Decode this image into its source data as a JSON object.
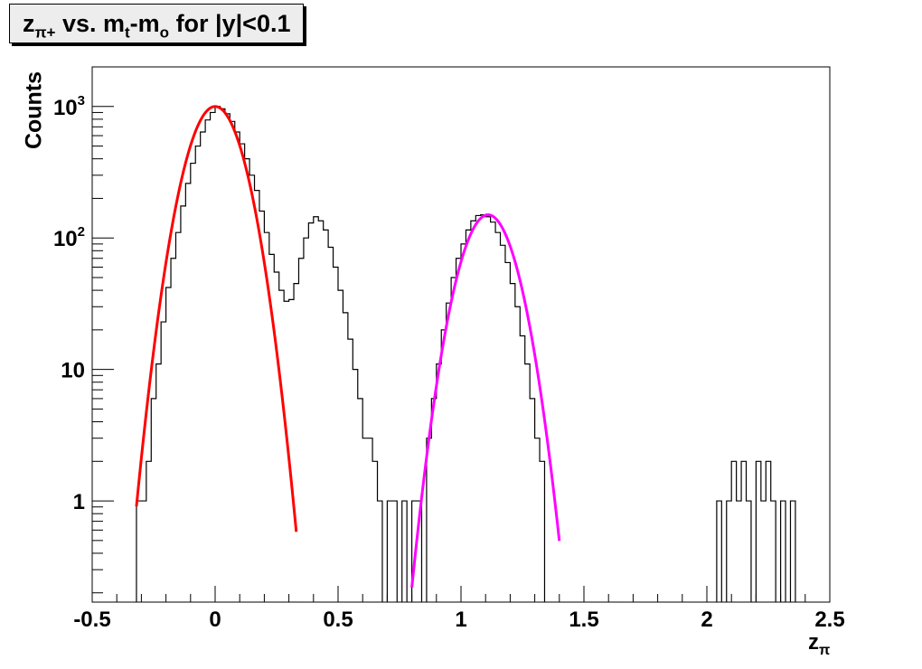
{
  "chart_data": {
    "type": "histogram",
    "title_parts": {
      "z": "z",
      "z_sub": "π+",
      "mid": " vs. m",
      "mt_sub": "t",
      "dash": "-m",
      "mo_sub": "o",
      "tail": " for |y|<0.1"
    },
    "ylabel": "Counts",
    "xlabel": {
      "main": "z",
      "sub": "π"
    },
    "y_scale": "log",
    "xlim": [
      -0.5,
      2.5
    ],
    "ylim": [
      0.17,
      2000
    ],
    "x_ticks": [
      {
        "v": -0.5,
        "label": "-0.5"
      },
      {
        "v": 0,
        "label": "0"
      },
      {
        "v": 0.5,
        "label": "0.5"
      },
      {
        "v": 1,
        "label": "1"
      },
      {
        "v": 1.5,
        "label": "1.5"
      },
      {
        "v": 2,
        "label": "2"
      },
      {
        "v": 2.5,
        "label": "2.5"
      }
    ],
    "y_ticks": [
      {
        "v": 1000,
        "base": "10",
        "sup": "3"
      },
      {
        "v": 100,
        "base": "10",
        "sup": "2"
      },
      {
        "v": 10,
        "base": "10",
        "sup": ""
      },
      {
        "v": 1,
        "base": "1",
        "sup": ""
      }
    ],
    "histogram": {
      "bin_width": 0.02,
      "color": "#000000",
      "bins": [
        [
          -0.32,
          1
        ],
        [
          -0.3,
          1
        ],
        [
          -0.28,
          2
        ],
        [
          -0.26,
          6
        ],
        [
          -0.24,
          11
        ],
        [
          -0.22,
          23
        ],
        [
          -0.2,
          42
        ],
        [
          -0.18,
          70
        ],
        [
          -0.16,
          110
        ],
        [
          -0.14,
          175
        ],
        [
          -0.12,
          260
        ],
        [
          -0.1,
          370
        ],
        [
          -0.08,
          500
        ],
        [
          -0.06,
          640
        ],
        [
          -0.04,
          790
        ],
        [
          -0.02,
          900
        ],
        [
          0.0,
          1000
        ],
        [
          0.02,
          960
        ],
        [
          0.04,
          880
        ],
        [
          0.06,
          770
        ],
        [
          0.08,
          640
        ],
        [
          0.1,
          520
        ],
        [
          0.12,
          400
        ],
        [
          0.14,
          300
        ],
        [
          0.16,
          230
        ],
        [
          0.18,
          160
        ],
        [
          0.2,
          110
        ],
        [
          0.22,
          75
        ],
        [
          0.24,
          55
        ],
        [
          0.26,
          40
        ],
        [
          0.28,
          33
        ],
        [
          0.3,
          34
        ],
        [
          0.32,
          45
        ],
        [
          0.34,
          70
        ],
        [
          0.36,
          100
        ],
        [
          0.38,
          130
        ],
        [
          0.4,
          145
        ],
        [
          0.42,
          135
        ],
        [
          0.44,
          115
        ],
        [
          0.46,
          85
        ],
        [
          0.48,
          60
        ],
        [
          0.5,
          40
        ],
        [
          0.52,
          27
        ],
        [
          0.54,
          17
        ],
        [
          0.56,
          10
        ],
        [
          0.58,
          6
        ],
        [
          0.6,
          3
        ],
        [
          0.62,
          3
        ],
        [
          0.64,
          2
        ],
        [
          0.66,
          1
        ],
        [
          0.7,
          1
        ],
        [
          0.72,
          1
        ],
        [
          0.76,
          1
        ],
        [
          0.8,
          1
        ],
        [
          0.82,
          1
        ],
        [
          0.86,
          3
        ],
        [
          0.88,
          6
        ],
        [
          0.9,
          11
        ],
        [
          0.92,
          20
        ],
        [
          0.94,
          32
        ],
        [
          0.96,
          50
        ],
        [
          0.98,
          70
        ],
        [
          1.0,
          90
        ],
        [
          1.02,
          115
        ],
        [
          1.04,
          135
        ],
        [
          1.06,
          148
        ],
        [
          1.08,
          150
        ],
        [
          1.1,
          145
        ],
        [
          1.12,
          132
        ],
        [
          1.14,
          110
        ],
        [
          1.16,
          88
        ],
        [
          1.18,
          65
        ],
        [
          1.2,
          45
        ],
        [
          1.22,
          30
        ],
        [
          1.24,
          18
        ],
        [
          1.26,
          11
        ],
        [
          1.28,
          6
        ],
        [
          1.3,
          3
        ],
        [
          1.32,
          2
        ],
        [
          2.04,
          1
        ],
        [
          2.08,
          1
        ],
        [
          2.1,
          2
        ],
        [
          2.12,
          1
        ],
        [
          2.14,
          2
        ],
        [
          2.16,
          1
        ],
        [
          2.2,
          2
        ],
        [
          2.22,
          1
        ],
        [
          2.24,
          2
        ],
        [
          2.26,
          1
        ],
        [
          2.3,
          1
        ],
        [
          2.34,
          1
        ]
      ]
    },
    "fits": [
      {
        "color": "#ff0000",
        "amplitude": 1000,
        "mean": 0.0,
        "sigma": 0.0855,
        "range": [
          -0.32,
          0.33
        ]
      },
      {
        "color": "#ff00ff",
        "amplitude": 150,
        "mean": 1.11,
        "sigma": 0.0858,
        "range": [
          0.8,
          1.4
        ]
      }
    ]
  }
}
